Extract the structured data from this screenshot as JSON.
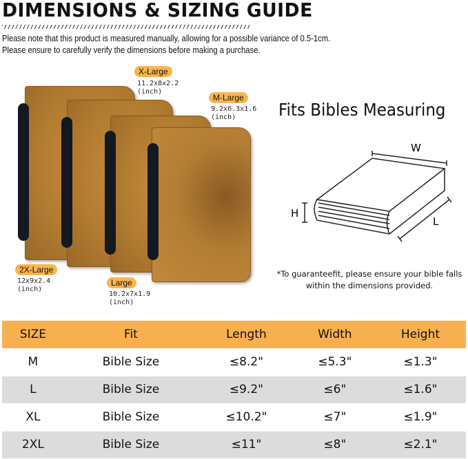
{
  "title": "DIMENSIONS & SIZING GUIDE",
  "notes": [
    "Please note that this product is measured manually, allowing for a possible variance of 0.5-1cm.",
    "Please ensure to carefully verify the dimensions before making a purchase."
  ],
  "sizes": [
    {
      "label": "X-Large",
      "dims": "11.2x8x2.2",
      "unit": "(inch)"
    },
    {
      "label": "M-Large",
      "dims": "9.2x6.3x1.6",
      "unit": "(inch)"
    },
    {
      "label": "2X-Large",
      "dims": "12x9x2.4",
      "unit": "(inch)"
    },
    {
      "label": "Large",
      "dims": "10.2x7x1.9",
      "unit": "(inch)"
    }
  ],
  "diagram": {
    "heading": "Fits Bibles Measuring",
    "w": "W",
    "h": "H",
    "l": "L",
    "note_lines": [
      "*To guaranteefit, please ensure your bible falls",
      "within the dimensions provided."
    ]
  },
  "table": {
    "headers": [
      "SIZE",
      "Fit",
      "Length",
      "Width",
      "Height"
    ],
    "rows": [
      [
        "M",
        "Bible Size",
        "≤8.2\"",
        "≤5.3\"",
        "≤1.3\""
      ],
      [
        "L",
        "Bible Size",
        "≤9.2\"",
        "≤6\"",
        "≤1.6\""
      ],
      [
        "XL",
        "Bible Size",
        "≤10.2\"",
        "≤7\"",
        "≤1.9\""
      ],
      [
        "2XL",
        "Bible Size",
        "≤11\"",
        "≤8\"",
        "≤2.1\""
      ]
    ],
    "header_color": "#f8b04e",
    "alt_row_color": "#dcdcdc"
  }
}
